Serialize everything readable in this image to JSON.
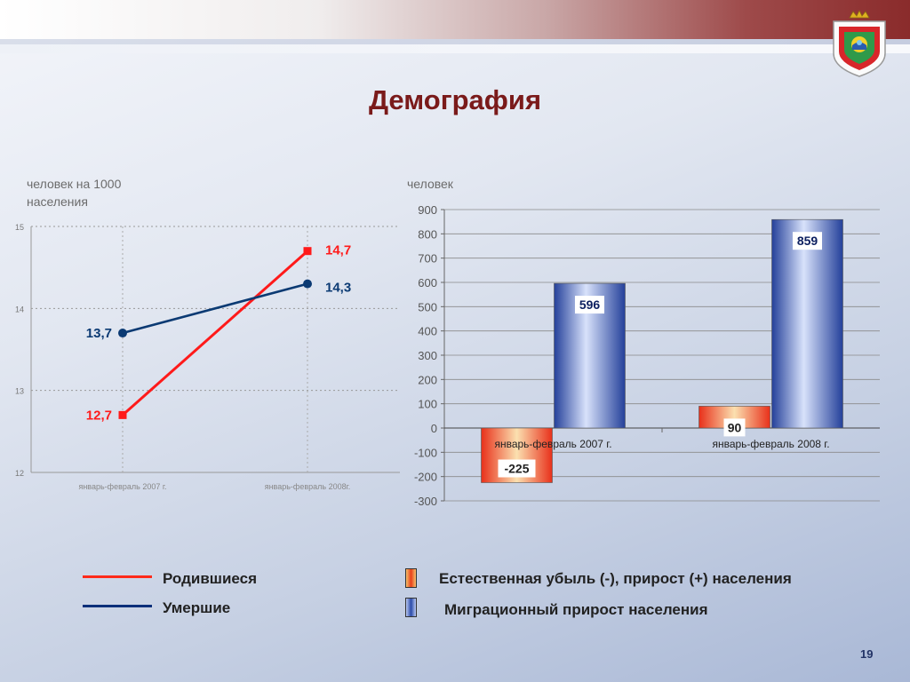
{
  "title": "Демография",
  "page_number": "19",
  "colors": {
    "born": "#ff1a1a",
    "died": "#0b3a73",
    "natural": "#e8401a",
    "migration": "#2b4aa8",
    "title": "#7a1a1a"
  },
  "left_chart": {
    "unit_label": "человек на 1000 населения"
  },
  "right_chart": {
    "unit_label": "человек"
  },
  "legend_left": [
    {
      "label": "Родившиеся",
      "color": "#ff1a1a"
    },
    {
      "label": "Умершие",
      "color": "#0b3a73"
    }
  ],
  "legend_right": [
    {
      "label": "Естественная убыль (-), прирост (+) населения",
      "swatch": "orange"
    },
    {
      "label": "Миграционный прирост населения",
      "swatch": "blue"
    }
  ],
  "chart_data": [
    {
      "type": "line",
      "categories": [
        "январь-февраль 2007 г.",
        "январь-февраль 2008г."
      ],
      "ylim": [
        12,
        15
      ],
      "yticks": [
        "12",
        "13",
        "14",
        "15"
      ],
      "grid": true,
      "series": [
        {
          "name": "Родившиеся",
          "values": [
            12.7,
            14.7
          ],
          "labels": [
            "12,7",
            "14,7"
          ],
          "color": "#ff1a1a",
          "marker": "square"
        },
        {
          "name": "Умершие",
          "values": [
            13.7,
            14.3
          ],
          "labels": [
            "13,7",
            "14,3"
          ],
          "color": "#0b3a73",
          "marker": "circle"
        }
      ]
    },
    {
      "type": "bar",
      "categories": [
        "январь-февраль 2007 г.",
        "январь-февраль 2008 г."
      ],
      "ylim": [
        -300,
        900
      ],
      "yticks": [
        "-300",
        "-200",
        "-100",
        "0",
        "100",
        "200",
        "300",
        "400",
        "500",
        "600",
        "700",
        "800",
        "900"
      ],
      "grid": true,
      "series": [
        {
          "name": "Естественная убыль (-), прирост (+) населения",
          "values": [
            -225,
            90
          ],
          "labels": [
            "-225",
            "90"
          ]
        },
        {
          "name": "Миграционный прирост населения",
          "values": [
            596,
            859
          ],
          "labels": [
            "596",
            "859"
          ]
        }
      ]
    }
  ]
}
